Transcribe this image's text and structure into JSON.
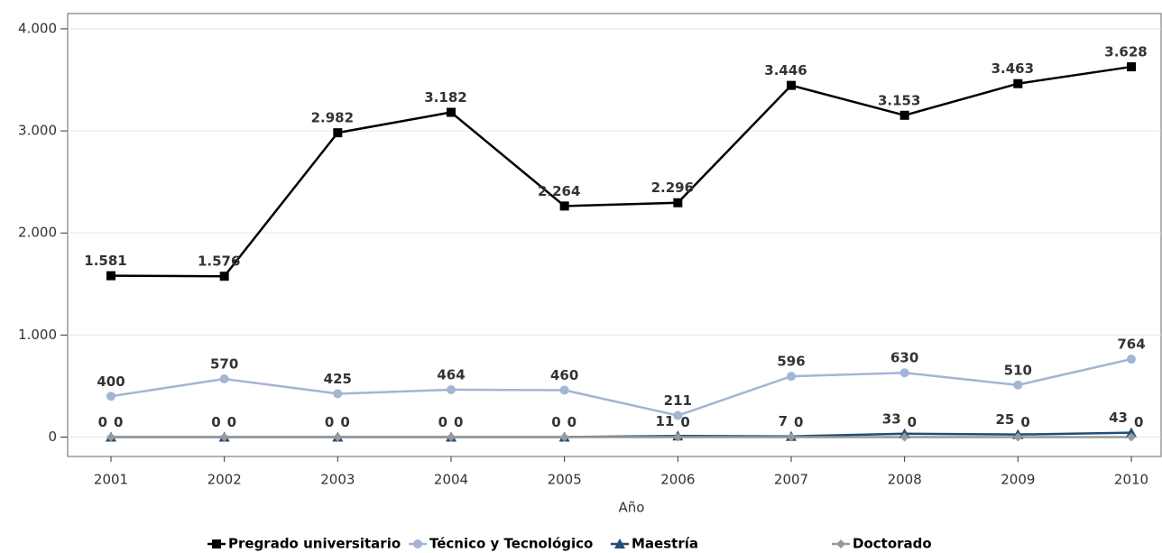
{
  "chart_data": {
    "type": "line",
    "x_label": "Año",
    "categories": [
      "2001",
      "2002",
      "2003",
      "2004",
      "2005",
      "2006",
      "2007",
      "2008",
      "2009",
      "2010"
    ],
    "series": [
      {
        "name": "Pregrado universitario",
        "color": "#000000",
        "marker": "square",
        "values": [
          1581,
          1576,
          2982,
          3182,
          2264,
          2296,
          3446,
          3153,
          3463,
          3628
        ],
        "value_labels": [
          "1.581",
          "1.576",
          "2.982",
          "3.182",
          "2.264",
          "2.296",
          "3.446",
          "3.153",
          "3.463",
          "3.628"
        ]
      },
      {
        "name": "Técnico y Tecnológico",
        "color": "#a3b4d4",
        "marker": "circle",
        "values": [
          400,
          570,
          425,
          464,
          460,
          211,
          596,
          630,
          510,
          764
        ]
      },
      {
        "name": "Maestría",
        "color": "#1f4e79",
        "marker": "triangle",
        "values": [
          0,
          0,
          0,
          0,
          0,
          11,
          7,
          33,
          25,
          43
        ]
      },
      {
        "name": "Doctorado",
        "color": "#999999",
        "marker": "diamond",
        "values": [
          0,
          0,
          0,
          0,
          0,
          0,
          0,
          0,
          0,
          0
        ]
      }
    ],
    "ylim": [
      -190,
      4150
    ],
    "yticks": [
      0,
      {
        "value": 1000,
        "label": "1.000"
      },
      {
        "value": 2000,
        "label": "2.000"
      },
      {
        "value": 3000,
        "label": "3.000"
      },
      {
        "value": 4000,
        "label": "4.000"
      }
    ],
    "grid": true
  }
}
